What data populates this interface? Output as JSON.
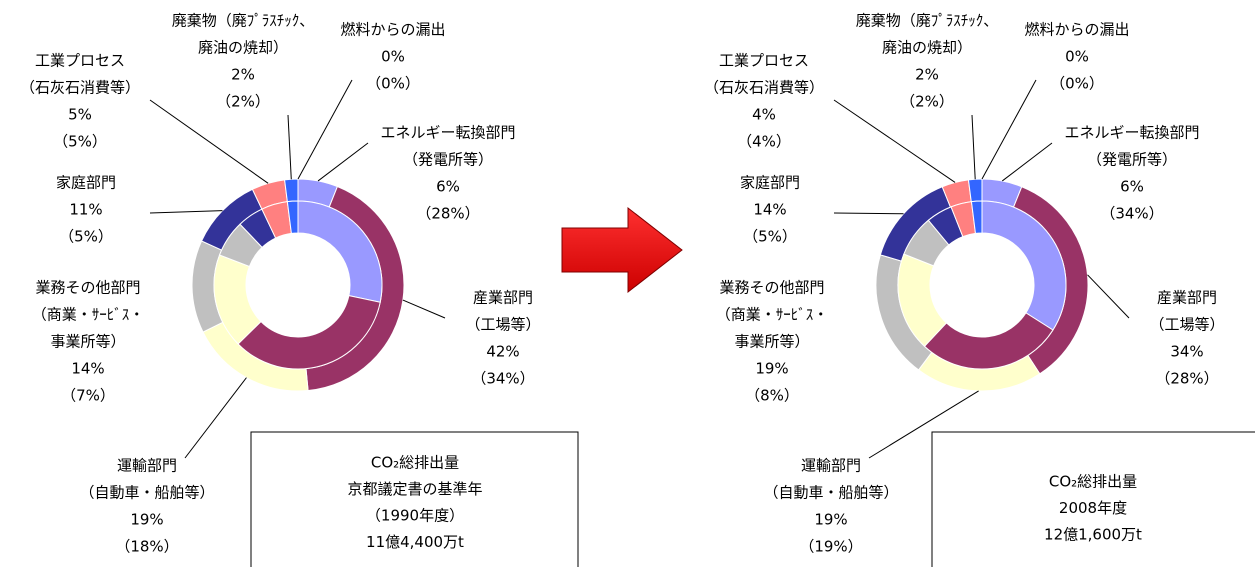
{
  "chart_data": [
    {
      "type": "donut",
      "categories": [
        [
          "エネルギー転換部門",
          "（発電所等）"
        ],
        [
          "産業部門",
          "（工場等）"
        ],
        [
          "運輸部門",
          "（自動車・船舶等）"
        ],
        [
          "業務その他部門",
          "（商業・ｻｰﾋﾞｽ・",
          "事業所等）"
        ],
        [
          "家庭部門"
        ],
        [
          "工業プロセス",
          "（石灰石消費等）"
        ],
        [
          "廃棄物（廃ﾌﾟﾗｽﾁｯｸ、",
          "廃油の焼却）"
        ],
        [
          "燃料からの漏出"
        ]
      ],
      "colors": [
        "#9999ff",
        "#993366",
        "#ffffcc",
        "#c0c0c0",
        "#333399",
        "#ff8080",
        "#3366ff",
        "#0066cc"
      ],
      "series": [
        {
          "values": [
            6,
            42,
            19,
            14,
            11,
            5,
            2,
            0
          ],
          "value_labels": [
            "6%",
            "42%",
            "19%",
            "14%",
            "11%",
            "5%",
            "2%",
            "0%"
          ]
        },
        {
          "values": [
            28,
            34,
            18,
            7,
            5,
            5,
            2,
            0
          ],
          "value_labels": [
            "（28%）",
            "（34%）",
            "（18%）",
            "（7%）",
            "（5%）",
            "（5%）",
            "（2%）",
            "（0%）"
          ]
        }
      ],
      "box_text": [
        "CO₂総排出量",
        "京都議定書の基準年",
        "（1990年度）",
        "11億4,400万t"
      ]
    },
    {
      "type": "donut",
      "categories": [
        [
          "エネルギー転換部門",
          "（発電所等）"
        ],
        [
          "産業部門",
          "（工場等）"
        ],
        [
          "運輸部門",
          "（自動車・船舶等）"
        ],
        [
          "業務その他部門",
          "（商業・ｻｰﾋﾞｽ・",
          "事業所等）"
        ],
        [
          "家庭部門"
        ],
        [
          "工業プロセス",
          "（石灰石消費等）"
        ],
        [
          "廃棄物（廃ﾌﾟﾗｽﾁｯｸ、",
          "廃油の焼却）"
        ],
        [
          "燃料からの漏出"
        ]
      ],
      "colors": [
        "#9999ff",
        "#993366",
        "#ffffcc",
        "#c0c0c0",
        "#333399",
        "#ff8080",
        "#3366ff",
        "#0066cc"
      ],
      "series": [
        {
          "values": [
            6,
            34,
            19,
            19,
            14,
            4,
            2,
            0
          ],
          "value_labels": [
            "6%",
            "34%",
            "19%",
            "19%",
            "14%",
            "4%",
            "2%",
            "0%"
          ]
        },
        {
          "values": [
            34,
            28,
            19,
            8,
            5,
            4,
            2,
            0
          ],
          "value_labels": [
            "（34%）",
            "（28%）",
            "（19%）",
            "（8%）",
            "（5%）",
            "（4%）",
            "（2%）",
            "（0%）"
          ]
        }
      ],
      "box_text": [
        "CO₂総排出量",
        "2008年度",
        "12億1,600万t"
      ]
    }
  ]
}
